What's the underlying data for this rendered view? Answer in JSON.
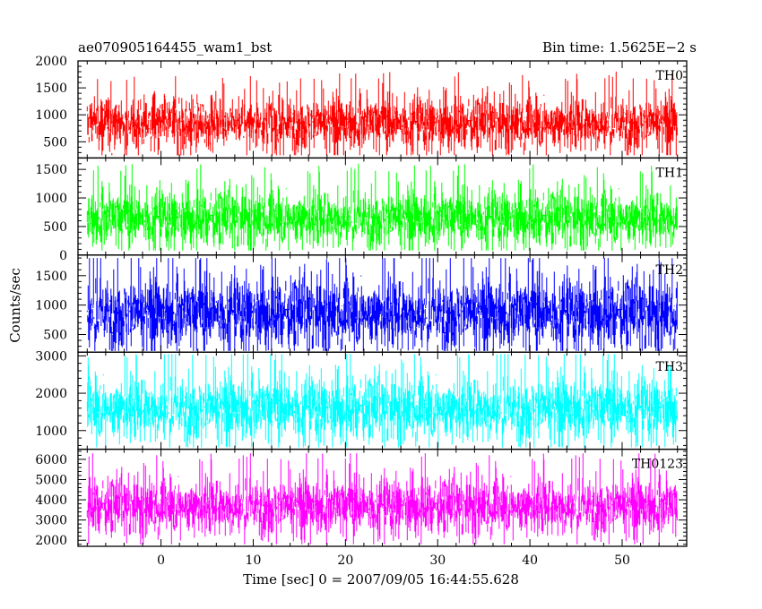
{
  "header": {
    "title": "ae070905164455_wam1_bst",
    "bin_time": "Bin time: 1.5625E−2 s"
  },
  "chart_data": {
    "type": "line",
    "xlabel": "Time [sec] 0 = 2007/09/05 16:44:55.628",
    "ylabel": "Counts/sec",
    "xlim": [
      -9,
      57
    ],
    "data_x_range": [
      -8,
      56
    ],
    "x_ticks": [
      0,
      10,
      20,
      30,
      40,
      50
    ],
    "panels": [
      {
        "name": "TH0",
        "color": "#ff0000",
        "ylim": [
          200,
          2000
        ],
        "y_ticks": [
          500,
          1000,
          1500,
          2000
        ],
        "mean": 850,
        "spread": 230,
        "min": 250,
        "max": 1900
      },
      {
        "name": "TH1",
        "color": "#00ff00",
        "ylim": [
          0,
          1700
        ],
        "y_ticks": [
          0,
          500,
          1000,
          1500
        ],
        "mean": 650,
        "spread": 230,
        "min": 80,
        "max": 1650
      },
      {
        "name": "TH2",
        "color": "#0000ff",
        "ylim": [
          200,
          1850
        ],
        "y_ticks": [
          500,
          1000,
          1500
        ],
        "mean": 870,
        "spread": 280,
        "min": 220,
        "max": 1800
      },
      {
        "name": "TH3",
        "color": "#00ffff",
        "ylim": [
          500,
          3100
        ],
        "y_ticks": [
          1000,
          2000,
          3000
        ],
        "mean": 1600,
        "spread": 400,
        "min": 550,
        "max": 3050
      },
      {
        "name": "TH0123",
        "color": "#ff00ff",
        "ylim": [
          1700,
          6500
        ],
        "y_ticks": [
          2000,
          3000,
          4000,
          5000,
          6000
        ],
        "mean": 3700,
        "spread": 650,
        "min": 1800,
        "max": 6300
      }
    ]
  }
}
